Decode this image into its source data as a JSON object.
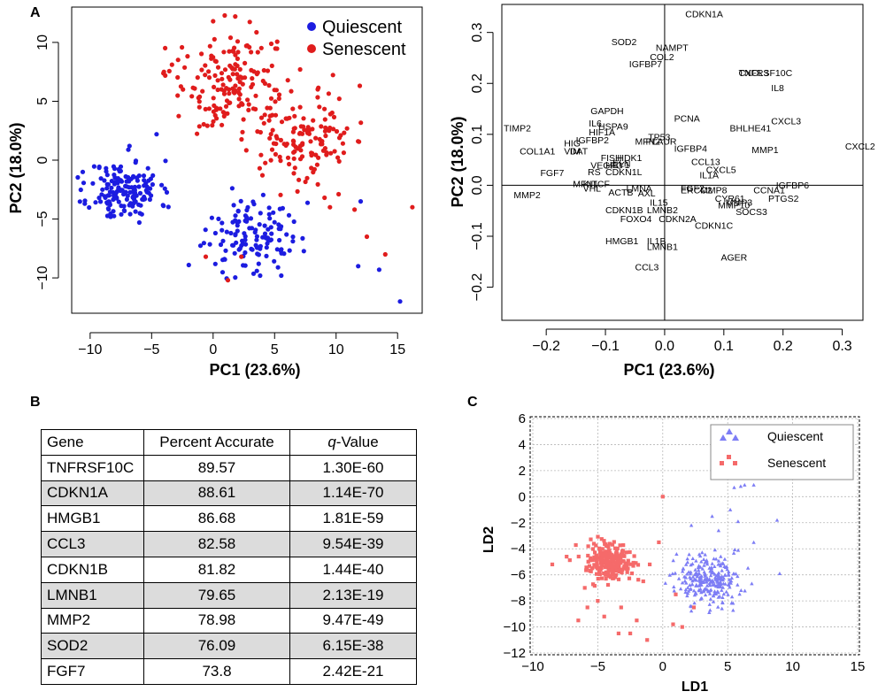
{
  "panel_labels": {
    "a": "A",
    "b": "B",
    "c": "C"
  },
  "colors": {
    "quiescent": "#1c1ce0",
    "senescent": "#e01c1c",
    "lda_quiescent": "#7d7df5",
    "lda_senescent": "#f56a6a"
  },
  "chart_data": [
    {
      "type": "scatter",
      "xlabel": "PC1 (23.6%)",
      "ylabel": "PC2 (18.0%)",
      "xlim": [
        -11.5,
        17
      ],
      "ylim": [
        -13,
        13
      ],
      "xticks": [
        "−10",
        "−5",
        "0",
        "5",
        "10",
        "15"
      ],
      "yticks": [
        "−10",
        "−5",
        "0",
        "5",
        "10"
      ],
      "legend_position": "top-right",
      "series": [
        {
          "name": "Quiescent",
          "color": "#1c1ce0",
          "clusters": [
            {
              "center": [
                -7.2,
                -2.6
              ],
              "spread": [
                1.8,
                1.6
              ],
              "count": 160
            },
            {
              "center": [
                3.2,
                -6.3
              ],
              "spread": [
                2.4,
                1.9
              ],
              "count": 130
            }
          ],
          "extra_points": [
            [
              15.2,
              -12.0
            ],
            [
              12.0,
              -3.5
            ],
            [
              11.8,
              -9.0
            ],
            [
              13.5,
              -9.3
            ],
            [
              -6.8,
              1.2
            ],
            [
              -10.6,
              -1.0
            ],
            [
              -4.6,
              2.2
            ],
            [
              -0.1,
              -4.9
            ]
          ]
        },
        {
          "name": "Senescent",
          "color": "#e01c1c",
          "clusters": [
            {
              "center": [
                1.2,
                6.5
              ],
              "spread": [
                2.8,
                2.6
              ],
              "count": 160
            },
            {
              "center": [
                7.3,
                1.9
              ],
              "spread": [
                2.8,
                2.8
              ],
              "count": 140
            }
          ],
          "extra_points": [
            [
              1.8,
              12.2
            ],
            [
              0.0,
              11.8
            ],
            [
              16.2,
              -4.0
            ],
            [
              14.0,
              -8.0
            ],
            [
              12.5,
              -6.5
            ],
            [
              11.5,
              -4.2
            ],
            [
              9.5,
              -4.0
            ],
            [
              -4.0,
              7.5
            ],
            [
              -0.6,
              -8.2
            ],
            [
              2.3,
              -8.2
            ],
            [
              1.2,
              -10.2
            ]
          ]
        }
      ]
    },
    {
      "type": "scatter",
      "xlabel": "PC1 (23.6%)",
      "ylabel": "PC2 (18.0%)",
      "xlim": [
        -0.275,
        0.335
      ],
      "ylim": [
        -0.265,
        0.355
      ],
      "xticks": [
        "−0.2",
        "−0.1",
        "0.0",
        "0.1",
        "0.2",
        "0.3"
      ],
      "yticks": [
        "−0.2",
        "−0.1",
        "0.0",
        "0.1",
        "0.2",
        "0.3"
      ],
      "reference_lines": [
        "x = 0",
        "y = 0"
      ],
      "points": [
        {
          "label": "CDKN1A",
          "x": 0.035,
          "y": 0.33
        },
        {
          "label": "SOD2",
          "x": -0.09,
          "y": 0.275
        },
        {
          "label": "NAMPT",
          "x": -0.015,
          "y": 0.264
        },
        {
          "label": "COL2",
          "x": -0.025,
          "y": 0.246
        },
        {
          "label": "IGFBP7",
          "x": -0.06,
          "y": 0.232
        },
        {
          "label": "TNFRSF10C",
          "x": 0.125,
          "y": 0.214
        },
        {
          "label": "CXCL3",
          "x": 0.125,
          "y": 0.214
        },
        {
          "label": "IL8",
          "x": 0.18,
          "y": 0.185
        },
        {
          "label": "GAPDH",
          "x": -0.125,
          "y": 0.14
        },
        {
          "label": "PCNA",
          "x": 0.016,
          "y": 0.125
        },
        {
          "label": "CXCL3",
          "x": 0.18,
          "y": 0.12
        },
        {
          "label": "BHLHE41",
          "x": 0.11,
          "y": 0.106
        },
        {
          "label": "IL6",
          "x": -0.128,
          "y": 0.115
        },
        {
          "label": "HSPA9",
          "x": -0.112,
          "y": 0.109
        },
        {
          "label": "HIF1A",
          "x": -0.128,
          "y": 0.098
        },
        {
          "label": "TIMP2",
          "x": -0.272,
          "y": 0.106
        },
        {
          "label": "IGFBP2",
          "x": -0.15,
          "y": 0.082
        },
        {
          "label": "HIG",
          "x": -0.17,
          "y": 0.076
        },
        {
          "label": "MFN2",
          "x": -0.05,
          "y": 0.08
        },
        {
          "label": "PLAUR",
          "x": -0.032,
          "y": 0.08
        },
        {
          "label": "TP53",
          "x": -0.028,
          "y": 0.088
        },
        {
          "label": "IGFBP4",
          "x": 0.016,
          "y": 0.066
        },
        {
          "label": "MMP1",
          "x": 0.147,
          "y": 0.063
        },
        {
          "label": "CXCL2",
          "x": 0.305,
          "y": 0.07
        },
        {
          "label": "COL1A1",
          "x": -0.245,
          "y": 0.061
        },
        {
          "label": "VIM",
          "x": -0.17,
          "y": 0.061
        },
        {
          "label": "DAT",
          "x": -0.16,
          "y": 0.061
        },
        {
          "label": "FISH",
          "x": -0.108,
          "y": 0.048
        },
        {
          "label": "HDK1",
          "x": -0.08,
          "y": 0.048
        },
        {
          "label": "VEGFC",
          "x": -0.125,
          "y": 0.033
        },
        {
          "label": "HEY1",
          "x": -0.1,
          "y": 0.034
        },
        {
          "label": "ELN",
          "x": -0.088,
          "y": 0.036
        },
        {
          "label": "CCL13",
          "x": 0.045,
          "y": 0.04
        },
        {
          "label": "RS",
          "x": -0.13,
          "y": 0.02
        },
        {
          "label": "CDKN1L",
          "x": -0.1,
          "y": 0.02
        },
        {
          "label": "FGF7",
          "x": -0.21,
          "y": 0.018
        },
        {
          "label": "CXCL5",
          "x": 0.07,
          "y": 0.024
        },
        {
          "label": "IL1A",
          "x": 0.059,
          "y": 0.014
        },
        {
          "label": "IGFBP6",
          "x": 0.188,
          "y": -0.006
        },
        {
          "label": "MFN1",
          "x": -0.155,
          "y": -0.004
        },
        {
          "label": "KITCF",
          "x": -0.138,
          "y": -0.004
        },
        {
          "label": "VHL",
          "x": -0.138,
          "y": -0.012
        },
        {
          "label": "CCNA1",
          "x": 0.15,
          "y": -0.016
        },
        {
          "label": "FGF2",
          "x": 0.027,
          "y": -0.012
        },
        {
          "label": "ERCC2",
          "x": 0.027,
          "y": -0.016
        },
        {
          "label": "MMP8",
          "x": 0.06,
          "y": -0.016
        },
        {
          "label": "LMNA",
          "x": -0.065,
          "y": -0.012
        },
        {
          "label": "ACTB",
          "x": -0.095,
          "y": -0.02
        },
        {
          "label": "AXL",
          "x": -0.045,
          "y": -0.022
        },
        {
          "label": "MMP2",
          "x": -0.255,
          "y": -0.025
        },
        {
          "label": "PTGS2",
          "x": 0.175,
          "y": -0.032
        },
        {
          "label": "CYR61",
          "x": 0.085,
          "y": -0.032
        },
        {
          "label": "MMP3",
          "x": 0.103,
          "y": -0.04
        },
        {
          "label": "MMP10",
          "x": 0.09,
          "y": -0.045
        },
        {
          "label": "IL15",
          "x": -0.025,
          "y": -0.04
        },
        {
          "label": "LMNB2",
          "x": -0.03,
          "y": -0.055
        },
        {
          "label": "CDKN1B",
          "x": -0.1,
          "y": -0.055
        },
        {
          "label": "SOCS3",
          "x": 0.12,
          "y": -0.058
        },
        {
          "label": "FOXO4",
          "x": -0.075,
          "y": -0.072
        },
        {
          "label": "CDKN2A",
          "x": -0.01,
          "y": -0.072
        },
        {
          "label": "CDKN1C",
          "x": 0.051,
          "y": -0.085
        },
        {
          "label": "HMGB1",
          "x": -0.1,
          "y": -0.116
        },
        {
          "label": "IL1B",
          "x": -0.03,
          "y": -0.116
        },
        {
          "label": "LMNB1",
          "x": -0.03,
          "y": -0.127
        },
        {
          "label": "AGER",
          "x": 0.095,
          "y": -0.148
        },
        {
          "label": "CCL3",
          "x": -0.05,
          "y": -0.167
        }
      ]
    },
    {
      "type": "table",
      "columns": [
        "Gene",
        "Percent Accurate",
        "q-Value"
      ],
      "rows": [
        [
          "TNFRSF10C",
          "89.57",
          "1.30E-60"
        ],
        [
          "CDKN1A",
          "88.61",
          "1.14E-70"
        ],
        [
          "HMGB1",
          "86.68",
          "1.81E-59"
        ],
        [
          "CCL3",
          "82.58",
          "9.54E-39"
        ],
        [
          "CDKN1B",
          "81.82",
          "1.44E-40"
        ],
        [
          "LMNB1",
          "79.65",
          "2.13E-19"
        ],
        [
          "MMP2",
          "78.98",
          "9.47E-49"
        ],
        [
          "SOD2",
          "76.09",
          "6.15E-38"
        ],
        [
          "FGF7",
          "73.8",
          "2.42E-21"
        ]
      ]
    },
    {
      "type": "scatter",
      "xlabel": "LD1",
      "ylabel": "LD2",
      "xlim": [
        -10,
        15
      ],
      "ylim": [
        -12,
        6
      ],
      "xticks": [
        "−10",
        "−5",
        "0",
        "5",
        "10",
        "15"
      ],
      "yticks": [
        "−12",
        "−10",
        "−8",
        "−6",
        "−4",
        "−2",
        "0",
        "2",
        "4",
        "6"
      ],
      "grid": true,
      "legend_position": "top-right",
      "series": [
        {
          "name": "Quiescent",
          "marker": "triangle",
          "color": "#7d7df5",
          "clusters": [
            {
              "center": [
                3.5,
                -6.3
              ],
              "spread": [
                1.5,
                1.2
              ],
              "count": 260
            }
          ],
          "extra_points": [
            [
              5.5,
              0.7
            ],
            [
              6.0,
              0.8
            ],
            [
              7.0,
              0.9
            ],
            [
              6.3,
              0.9
            ],
            [
              4.0,
              2.5
            ],
            [
              5.0,
              3.0
            ],
            [
              4.5,
              4.5
            ],
            [
              3.8,
              -1.5
            ],
            [
              5.2,
              -1.0
            ],
            [
              5.8,
              -1.9
            ],
            [
              7.0,
              -3.5
            ],
            [
              8.8,
              -1.8
            ],
            [
              9.0,
              -5.9
            ],
            [
              2.2,
              -2.2
            ],
            [
              4.3,
              -2.6
            ]
          ]
        },
        {
          "name": "Senescent",
          "marker": "square",
          "color": "#f56a6a",
          "clusters": [
            {
              "center": [
                -4.0,
                -5.0
              ],
              "spread": [
                1.2,
                0.9
              ],
              "count": 230
            }
          ],
          "extra_points": [
            [
              0.0,
              0.0
            ],
            [
              -8.5,
              -5.2
            ],
            [
              -7.4,
              -4.6
            ],
            [
              -6.0,
              -7.0
            ],
            [
              -5.8,
              -8.5
            ],
            [
              -6.5,
              -9.5
            ],
            [
              -5.0,
              -8.0
            ],
            [
              -4.5,
              -9.2
            ],
            [
              -3.4,
              -10.5
            ],
            [
              -2.5,
              -10.5
            ],
            [
              -1.2,
              -11.0
            ],
            [
              -2.0,
              -9.5
            ],
            [
              -3.2,
              -8.5
            ],
            [
              -1.5,
              -6.5
            ],
            [
              -1.0,
              -5.2
            ],
            [
              0.8,
              -9.8
            ],
            [
              1.0,
              -7.5
            ],
            [
              1.5,
              -10.0
            ],
            [
              2.4,
              -8.5
            ],
            [
              -0.3,
              -3.5
            ]
          ]
        }
      ]
    }
  ]
}
